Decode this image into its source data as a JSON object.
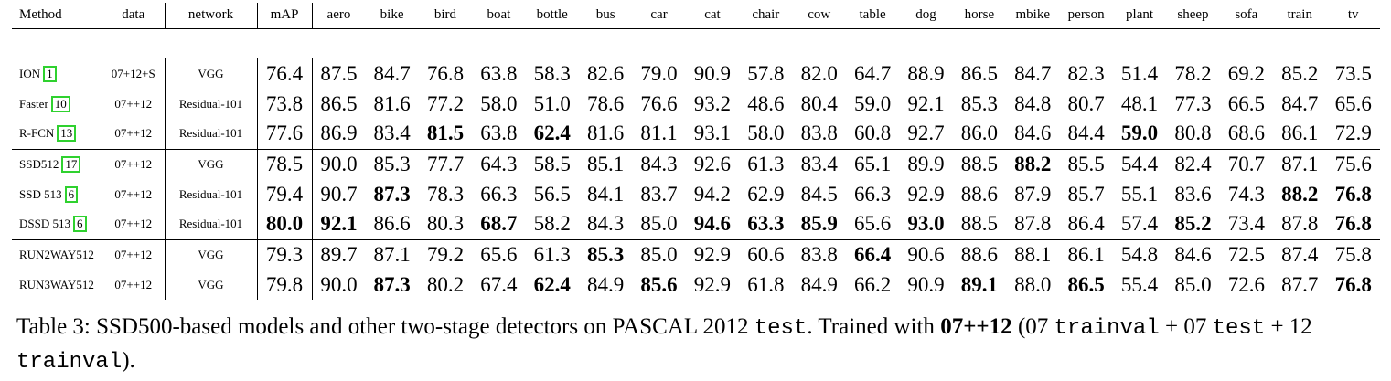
{
  "table": {
    "headers": [
      "Method",
      "data",
      "network",
      "mAP",
      "aero",
      "bike",
      "bird",
      "boat",
      "bottle",
      "bus",
      "car",
      "cat",
      "chair",
      "cow",
      "table",
      "dog",
      "horse",
      "mbike",
      "person",
      "plant",
      "sheep",
      "sofa",
      "train",
      "tv"
    ],
    "groups": [
      [
        {
          "method": "ION",
          "ref": "1",
          "data": "07+12+S",
          "network": "VGG",
          "values": [
            "76.4",
            "87.5",
            "84.7",
            "76.8",
            "63.8",
            "58.3",
            "82.6",
            "79.0",
            "90.9",
            "57.8",
            "82.0",
            "64.7",
            "88.9",
            "86.5",
            "84.7",
            "82.3",
            "51.4",
            "78.2",
            "69.2",
            "85.2",
            "73.5"
          ],
          "bold": []
        },
        {
          "method": "Faster",
          "ref": "10",
          "data": "07++12",
          "network": "Residual-101",
          "values": [
            "73.8",
            "86.5",
            "81.6",
            "77.2",
            "58.0",
            "51.0",
            "78.6",
            "76.6",
            "93.2",
            "48.6",
            "80.4",
            "59.0",
            "92.1",
            "85.3",
            "84.8",
            "80.7",
            "48.1",
            "77.3",
            "66.5",
            "84.7",
            "65.6"
          ],
          "bold": []
        },
        {
          "method": "R-FCN",
          "ref": "13",
          "data": "07++12",
          "network": "Residual-101",
          "values": [
            "77.6",
            "86.9",
            "83.4",
            "81.5",
            "63.8",
            "62.4",
            "81.6",
            "81.1",
            "93.1",
            "58.0",
            "83.8",
            "60.8",
            "92.7",
            "86.0",
            "84.6",
            "84.4",
            "59.0",
            "80.8",
            "68.6",
            "86.1",
            "72.9"
          ],
          "bold": [
            3,
            5,
            16
          ]
        }
      ],
      [
        {
          "method": "SSD512",
          "ref": "17",
          "data": "07++12",
          "network": "VGG",
          "values": [
            "78.5",
            "90.0",
            "85.3",
            "77.7",
            "64.3",
            "58.5",
            "85.1",
            "84.3",
            "92.6",
            "61.3",
            "83.4",
            "65.1",
            "89.9",
            "88.5",
            "88.2",
            "85.5",
            "54.4",
            "82.4",
            "70.7",
            "87.1",
            "75.6"
          ],
          "bold": [
            14
          ]
        },
        {
          "method": "SSD 513",
          "ref": "6",
          "data": "07++12",
          "network": "Residual-101",
          "values": [
            "79.4",
            "90.7",
            "87.3",
            "78.3",
            "66.3",
            "56.5",
            "84.1",
            "83.7",
            "94.2",
            "62.9",
            "84.5",
            "66.3",
            "92.9",
            "88.6",
            "87.9",
            "85.7",
            "55.1",
            "83.6",
            "74.3",
            "88.2",
            "76.8"
          ],
          "bold": [
            2,
            19,
            20
          ]
        },
        {
          "method": "DSSD 513",
          "ref": "6",
          "data": "07++12",
          "network": "Residual-101",
          "values": [
            "80.0",
            "92.1",
            "86.6",
            "80.3",
            "68.7",
            "58.2",
            "84.3",
            "85.0",
            "94.6",
            "63.3",
            "85.9",
            "65.6",
            "93.0",
            "88.5",
            "87.8",
            "86.4",
            "57.4",
            "85.2",
            "73.4",
            "87.8",
            "76.8"
          ],
          "bold": [
            0,
            1,
            4,
            8,
            9,
            10,
            12,
            17,
            20
          ]
        }
      ],
      [
        {
          "method": "RUN2WAY512",
          "ref": "",
          "data": "07++12",
          "network": "VGG",
          "values": [
            "79.3",
            "89.7",
            "87.1",
            "79.2",
            "65.6",
            "61.3",
            "85.3",
            "85.0",
            "92.9",
            "60.6",
            "83.8",
            "66.4",
            "90.6",
            "88.6",
            "88.1",
            "86.1",
            "54.8",
            "84.6",
            "72.5",
            "87.4",
            "75.8"
          ],
          "bold": [
            6,
            11
          ]
        },
        {
          "method": "RUN3WAY512",
          "ref": "",
          "data": "07++12",
          "network": "VGG",
          "values": [
            "79.8",
            "90.0",
            "87.3",
            "80.2",
            "67.4",
            "62.4",
            "84.9",
            "85.6",
            "92.9",
            "61.8",
            "84.9",
            "66.2",
            "90.9",
            "89.1",
            "88.0",
            "86.5",
            "55.4",
            "85.0",
            "72.6",
            "87.7",
            "76.8"
          ],
          "bold": [
            2,
            5,
            7,
            13,
            15,
            20
          ]
        }
      ]
    ]
  },
  "caption": {
    "label": "Table 3:",
    "text_1": " SSD500-based models and other two-stage detectors on PASCAL 2012 ",
    "mono_test": "test",
    "text_2": ". Trained with ",
    "bold_setting": "07++12",
    "text_3": " (07 ",
    "mono_trainval_1": "trainval",
    "text_4": " + 07 ",
    "mono_test_2": "test",
    "text_5": " + 12 ",
    "mono_trainval_2": "trainval",
    "text_6": ")."
  }
}
